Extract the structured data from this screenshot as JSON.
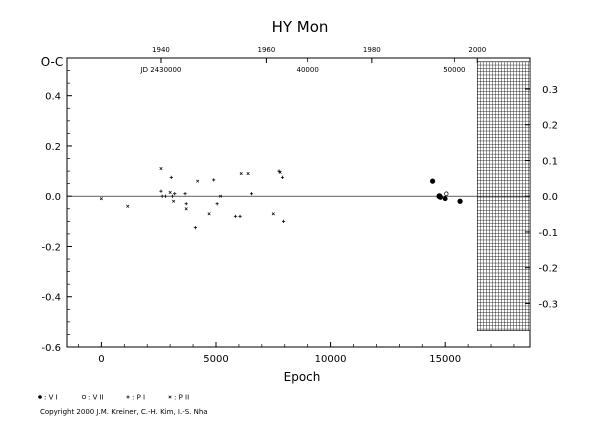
{
  "chart_data": {
    "type": "scatter",
    "title": "HY  Mon",
    "xlabel": "Epoch",
    "ylabel": "O-C",
    "xlim": [
      -1500,
      18700
    ],
    "ylim": [
      -0.6,
      0.55
    ],
    "x_ticks": [
      0,
      5000,
      10000,
      15000
    ],
    "x_tick_labels": [
      "0",
      "5000",
      "10000",
      "15000"
    ],
    "y_ticks_left": [
      -0.6,
      -0.4,
      -0.2,
      0.0,
      0.2,
      0.4
    ],
    "y_tick_labels_left": [
      "-0.6",
      "-0.4",
      "-0.2",
      "0.0",
      "0.2",
      "0.4"
    ],
    "y_ticks_right": [
      -0.3,
      -0.2,
      -0.1,
      0.0,
      0.1,
      0.2,
      0.3
    ],
    "y_tick_labels_right": [
      "-0.3",
      "-0.2",
      "-0.1",
      "0.0",
      "0.1",
      "0.2",
      "0.3"
    ],
    "top_year_ticks": [
      {
        "label": "1940",
        "epoch": 2600
      },
      {
        "label": "1960",
        "epoch": 7200
      },
      {
        "label": "1980",
        "epoch": 11800
      },
      {
        "label": "2000",
        "epoch": 16400
      }
    ],
    "top_jd_ticks": [
      {
        "label": "JD 2430000",
        "epoch": 2600
      },
      {
        "label": "40000",
        "epoch": 9000
      },
      {
        "label": "50000",
        "epoch": 15400
      }
    ],
    "hatched_region": {
      "x_from": 16400,
      "x_to": 18700,
      "y_from": -0.535,
      "y_to": 0.535
    },
    "grid": false,
    "legend": {
      "placement": "bottom-left",
      "entries": [
        {
          "marker": "filled-circle",
          "label": ": V I"
        },
        {
          "marker": "open-circle",
          "label": ": V II"
        },
        {
          "marker": "plus",
          "label": ": P I"
        },
        {
          "marker": "cross",
          "label": ": P II"
        }
      ]
    },
    "series": [
      {
        "name": ": V I",
        "marker": "filled-circle",
        "points": [
          {
            "x": 14450,
            "y": 0.06,
            "size": 2.6
          },
          {
            "x": 14750,
            "y": 0.0,
            "size": 3.0
          },
          {
            "x": 14800,
            "y": -0.005,
            "size": 2.4
          },
          {
            "x": 15000,
            "y": -0.01,
            "size": 2.4
          },
          {
            "x": 15650,
            "y": -0.02,
            "size": 2.6
          }
        ]
      },
      {
        "name": ": V II",
        "marker": "open-circle",
        "points": [
          {
            "x": 15050,
            "y": 0.01
          }
        ]
      },
      {
        "name": ": P I",
        "marker": "plus",
        "points": [
          {
            "x": 2600,
            "y": 0.02
          },
          {
            "x": 2650,
            "y": 0.0
          },
          {
            "x": 3050,
            "y": 0.075
          },
          {
            "x": 3100,
            "y": 0.0
          },
          {
            "x": 3650,
            "y": 0.01
          },
          {
            "x": 3700,
            "y": -0.03
          },
          {
            "x": 4100,
            "y": -0.125
          },
          {
            "x": 4900,
            "y": 0.065
          },
          {
            "x": 5050,
            "y": -0.03
          },
          {
            "x": 5850,
            "y": -0.08
          },
          {
            "x": 6050,
            "y": -0.08
          },
          {
            "x": 6550,
            "y": 0.01
          },
          {
            "x": 7750,
            "y": 0.1
          },
          {
            "x": 7900,
            "y": 0.075
          },
          {
            "x": 7950,
            "y": -0.1
          },
          {
            "x": 2800,
            "y": 0.0
          },
          {
            "x": 3200,
            "y": 0.01
          }
        ]
      },
      {
        "name": ": P II",
        "marker": "cross",
        "points": [
          {
            "x": 0,
            "y": -0.01
          },
          {
            "x": 1150,
            "y": -0.04
          },
          {
            "x": 2600,
            "y": 0.11
          },
          {
            "x": 3000,
            "y": 0.015
          },
          {
            "x": 3150,
            "y": -0.02
          },
          {
            "x": 3700,
            "y": -0.05
          },
          {
            "x": 4200,
            "y": 0.06
          },
          {
            "x": 4700,
            "y": -0.07
          },
          {
            "x": 5200,
            "y": 0.0
          },
          {
            "x": 6100,
            "y": 0.09
          },
          {
            "x": 6400,
            "y": 0.09
          },
          {
            "x": 7500,
            "y": -0.07
          },
          {
            "x": 7800,
            "y": 0.095
          }
        ]
      }
    ]
  },
  "copyright": "Copyright 2000 J.M. Kreiner, C.-H. Kim, I.-S. Nha"
}
